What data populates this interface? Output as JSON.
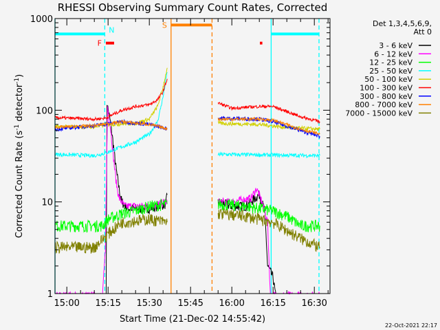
{
  "chart_data": {
    "type": "line",
    "title": "RHESSI Observing Summary Count Rates, Corrected",
    "xlabel": "Start Time (21-Dec-02 14:55:42)",
    "ylabel": "Corrected Count Rate (s⁻¹ detector⁻¹)",
    "ylabel_parts": [
      "Corrected Count Rate (s",
      "-1",
      " detector",
      "-1",
      ")"
    ],
    "x_units": "minutes after 15:00",
    "xlim": [
      -4.3,
      95.7
    ],
    "ylim": [
      1,
      1000
    ],
    "yscale": "log",
    "x_ticks": [
      {
        "t": 0,
        "label": "15:00"
      },
      {
        "t": 15,
        "label": "15:15"
      },
      {
        "t": 30,
        "label": "15:30"
      },
      {
        "t": 45,
        "label": "15:45"
      },
      {
        "t": 60,
        "label": "16:00"
      },
      {
        "t": 75,
        "label": "16:15"
      },
      {
        "t": 90,
        "label": "16:30"
      }
    ],
    "y_ticks": [
      {
        "v": 1,
        "label": "1"
      },
      {
        "v": 10,
        "label": "10"
      },
      {
        "v": 100,
        "label": "100"
      },
      {
        "v": 1000,
        "label": "1000"
      }
    ],
    "legend": {
      "header": [
        "Det 1,3,4,5,6,9,",
        "Att 0"
      ],
      "placement": "right"
    },
    "series": [
      {
        "name": "3 - 6 keV",
        "color": "#000000",
        "noise": 0.12,
        "segments": [
          [
            [
              14.3,
              0.9
            ],
            [
              14.6,
              120
            ],
            [
              16,
              70
            ],
            [
              17,
              40
            ],
            [
              18,
              22
            ],
            [
              19,
              14
            ],
            [
              20,
              10
            ],
            [
              22,
              8.5
            ],
            [
              30,
              8.5
            ],
            [
              36,
              9.5
            ],
            [
              36.5,
              12
            ]
          ],
          [
            [
              55,
              10
            ],
            [
              60,
              9
            ],
            [
              65,
              9
            ],
            [
              70,
              12
            ],
            [
              72,
              8
            ],
            [
              73,
              2
            ],
            [
              75,
              1.5
            ],
            [
              76,
              0.9
            ]
          ]
        ]
      },
      {
        "name": "6 - 12 keV",
        "color": "#ff00ff",
        "noise": 0.1,
        "segments": [
          [
            [
              -4.3,
              0.95
            ],
            [
              13,
              0.95
            ],
            [
              14,
              3
            ],
            [
              14.8,
              110
            ],
            [
              16,
              60
            ],
            [
              17,
              30
            ],
            [
              18,
              16
            ],
            [
              19,
              11
            ],
            [
              21,
              9
            ],
            [
              30,
              9
            ],
            [
              36,
              10
            ],
            [
              36.5,
              10
            ]
          ],
          [
            [
              55,
              10
            ],
            [
              60,
              10
            ],
            [
              67,
              11
            ],
            [
              69,
              14
            ],
            [
              71,
              10
            ],
            [
              73,
              6
            ],
            [
              74,
              0.95
            ],
            [
              92,
              0.95
            ]
          ]
        ]
      },
      {
        "name": "12 - 25 keV",
        "color": "#00ff00",
        "noise": 0.15,
        "segments": [
          [
            [
              -4.3,
              5.5
            ],
            [
              13,
              5.5
            ],
            [
              15,
              6.5
            ],
            [
              20,
              7.5
            ],
            [
              25,
              8
            ],
            [
              30,
              9
            ],
            [
              36.5,
              9.5
            ]
          ],
          [
            [
              55,
              9.5
            ],
            [
              65,
              9
            ],
            [
              70,
              8.5
            ],
            [
              75,
              8
            ],
            [
              80,
              7
            ],
            [
              85,
              5.5
            ],
            [
              92,
              5.5
            ]
          ]
        ]
      },
      {
        "name": "25 - 50 keV",
        "color": "#00ffff",
        "noise": 0.05,
        "segments": [
          [
            [
              -4.3,
              33
            ],
            [
              10,
              32
            ],
            [
              14,
              34
            ],
            [
              18,
              38
            ],
            [
              25,
              45
            ],
            [
              30,
              55
            ],
            [
              33,
              75
            ],
            [
              35,
              140
            ],
            [
              36.5,
              260
            ]
          ],
          [
            [
              55,
              33
            ],
            [
              92,
              32
            ]
          ]
        ]
      },
      {
        "name": "50 - 100 keV",
        "color": "#d0d000",
        "noise": 0.05,
        "segments": [
          [
            [
              -4.3,
              66
            ],
            [
              10,
              66
            ],
            [
              15,
              70
            ],
            [
              25,
              72
            ],
            [
              30,
              80
            ],
            [
              33,
              110
            ],
            [
              35,
              180
            ],
            [
              36.5,
              290
            ]
          ],
          [
            [
              55,
              72
            ],
            [
              70,
              70
            ],
            [
              80,
              65
            ],
            [
              92,
              62
            ]
          ]
        ]
      },
      {
        "name": "100 - 300 keV",
        "color": "#ff0000",
        "noise": 0.04,
        "segments": [
          [
            [
              -4.3,
              83
            ],
            [
              10,
              80
            ],
            [
              14,
              82
            ],
            [
              20,
              100
            ],
            [
              25,
              110
            ],
            [
              30,
              115
            ],
            [
              33,
              130
            ],
            [
              35,
              160
            ],
            [
              36.5,
              220
            ]
          ],
          [
            [
              55,
              120
            ],
            [
              60,
              105
            ],
            [
              70,
              110
            ],
            [
              75,
              110
            ],
            [
              85,
              85
            ],
            [
              92,
              75
            ]
          ]
        ]
      },
      {
        "name": "300 - 800 keV",
        "color": "#0000ff",
        "noise": 0.05,
        "segments": [
          [
            [
              -4.3,
              62
            ],
            [
              10,
              68
            ],
            [
              20,
              75
            ],
            [
              30,
              70
            ],
            [
              36.5,
              63
            ]
          ],
          [
            [
              55,
              82
            ],
            [
              70,
              80
            ],
            [
              75,
              75
            ],
            [
              85,
              60
            ],
            [
              92,
              52
            ]
          ]
        ]
      },
      {
        "name": "800 - 7000 keV",
        "color": "#ff8000",
        "noise": 0.04,
        "segments": [
          [
            [
              -4.3,
              65
            ],
            [
              10,
              68
            ],
            [
              20,
              75
            ],
            [
              30,
              70
            ],
            [
              36.5,
              63
            ]
          ],
          [
            [
              55,
              80
            ],
            [
              70,
              80
            ],
            [
              75,
              78
            ],
            [
              85,
              62
            ],
            [
              92,
              55
            ]
          ]
        ]
      },
      {
        "name": "7000 - 15000 keV",
        "color": "#808000",
        "noise": 0.15,
        "segments": [
          [
            [
              -4.3,
              3.2
            ],
            [
              10,
              3.2
            ],
            [
              15,
              4.5
            ],
            [
              20,
              6
            ],
            [
              30,
              6.5
            ],
            [
              36.5,
              6
            ]
          ],
          [
            [
              55,
              7.5
            ],
            [
              65,
              7
            ],
            [
              75,
              6
            ],
            [
              85,
              4
            ],
            [
              92,
              3.2
            ]
          ]
        ]
      }
    ],
    "vertical_markers": [
      {
        "t": -4.3,
        "color": "#00ffff",
        "style": "solid"
      },
      {
        "t": 13.8,
        "color": "#00ffff",
        "style": "dashed"
      },
      {
        "t": 37.9,
        "color": "#ff8000",
        "style": "solid"
      },
      {
        "t": 52.8,
        "color": "#ff8000",
        "style": "dashed"
      },
      {
        "t": 74.3,
        "color": "#00ffff",
        "style": "solid"
      },
      {
        "t": 91.7,
        "color": "#00ffff",
        "style": "dashed"
      }
    ],
    "flag_bars": [
      {
        "label": "",
        "t0": -4.3,
        "t1": 13.8,
        "level": 680,
        "color": "#00ffff"
      },
      {
        "label": "",
        "t0": 74.3,
        "t1": 91.7,
        "level": 680,
        "color": "#00ffff"
      },
      {
        "label": "S",
        "t0": 37.9,
        "t1": 52.8,
        "level": 850,
        "color": "#ff8000"
      },
      {
        "label": "F",
        "t0": 14.2,
        "t1": 17.2,
        "level": 540,
        "color": "#ff0000"
      },
      {
        "label": "",
        "t0": 70.2,
        "t1": 71.1,
        "level": 540,
        "color": "#ff0000"
      },
      {
        "label": "N",
        "t0": 16.3,
        "t1": 16.3,
        "level": 700,
        "color": "#00ffff",
        "text_only": true
      }
    ]
  },
  "footer": {
    "timestamp": "22-Oct-2021 22:17"
  }
}
